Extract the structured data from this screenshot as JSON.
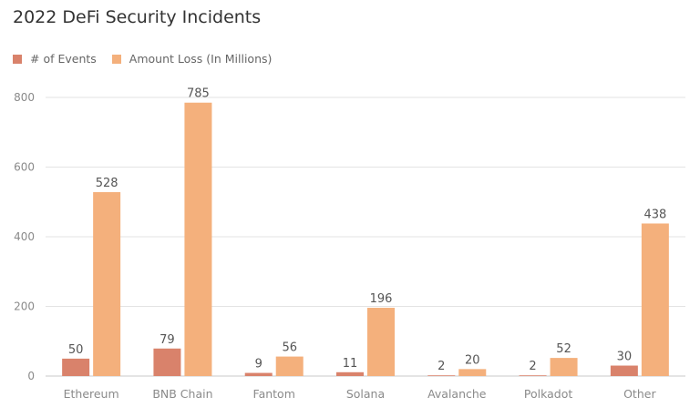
{
  "chart_data": {
    "type": "bar",
    "title": "2022 DeFi Security Incidents",
    "categories": [
      "Ethereum",
      "BNB Chain",
      "Fantom",
      "Solana",
      "Avalanche",
      "Polkadot",
      "Other"
    ],
    "series": [
      {
        "name": "# of Events",
        "values": [
          50,
          79,
          9,
          11,
          2,
          2,
          30
        ],
        "color": "#d9826b"
      },
      {
        "name": "Amount Loss (In Millions)",
        "values": [
          528,
          785,
          56,
          196,
          20,
          52,
          438
        ],
        "color": "#f4b07c"
      }
    ],
    "xlabel": "",
    "ylabel": "",
    "ylim": [
      0,
      800
    ],
    "yticks": [
      0,
      200,
      400,
      600,
      800
    ],
    "grid": true,
    "legend_position": "top-left",
    "data_labels": true,
    "colors": {
      "grid": "#e3e3e3",
      "axis": "#c8c8c8",
      "tick_text": "#8a8a8a",
      "label_text": "#555555"
    }
  }
}
